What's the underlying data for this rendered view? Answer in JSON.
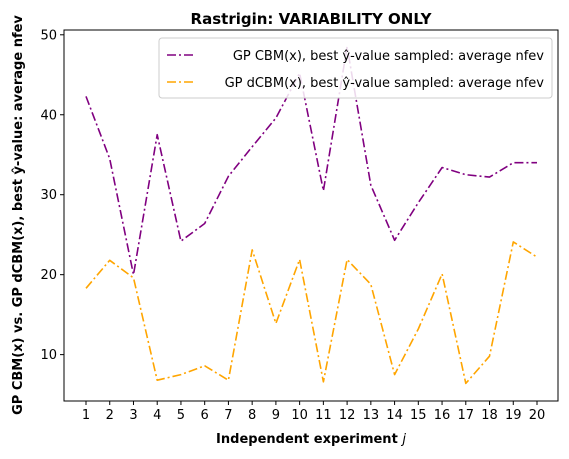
{
  "chart_data": {
    "type": "line",
    "title": "Rastrigin: VARIABILITY ONLY",
    "xlabel": "Independent experiment j",
    "ylabel": "GP CBM(x) vs. GP dCBM(x), best ŷ-value: average nfev",
    "x": [
      1,
      2,
      3,
      4,
      5,
      6,
      7,
      8,
      9,
      10,
      11,
      12,
      13,
      14,
      15,
      16,
      17,
      18,
      19,
      20
    ],
    "xticks": [
      "1",
      "2",
      "3",
      "4",
      "5",
      "6",
      "7",
      "8",
      "9",
      "10",
      "11",
      "12",
      "13",
      "14",
      "15",
      "16",
      "17",
      "18",
      "19",
      "20"
    ],
    "yticks": [
      "10",
      "20",
      "30",
      "40",
      "50"
    ],
    "ylim": [
      4.2,
      50.6
    ],
    "legend_position": "upper right",
    "series": [
      {
        "name": "GP CBM(x), best ŷ-value sampled: average nfev",
        "color": "#800080",
        "linestyle": "dash-dot",
        "values": [
          42.3,
          34.5,
          20.0,
          37.5,
          24.2,
          26.4,
          32.3,
          36.0,
          39.6,
          45.2,
          30.5,
          48.5,
          31.2,
          24.3,
          29.0,
          33.4,
          32.5,
          32.2,
          34.0,
          34.0
        ]
      },
      {
        "name": "GP dCBM(x), best ŷ-value sampled: average nfev",
        "color": "#ffa500",
        "linestyle": "dash-dot",
        "values": [
          18.3,
          21.8,
          19.6,
          6.8,
          7.5,
          8.6,
          6.8,
          23.1,
          13.9,
          21.9,
          6.6,
          21.9,
          18.8,
          7.5,
          13.2,
          20.1,
          6.4,
          9.8,
          24.1,
          22.2
        ]
      }
    ]
  }
}
